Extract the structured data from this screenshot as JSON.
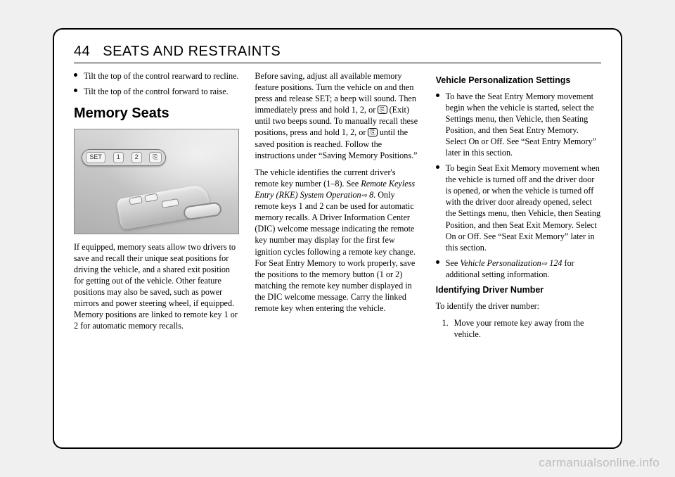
{
  "header": {
    "page_number": "44",
    "section": "SEATS AND RESTRAINTS"
  },
  "col1": {
    "bullets": [
      "Tilt the top of the control rearward to recline.",
      "Tilt the top of the control forward to raise."
    ],
    "heading": "Memory Seats",
    "figure": {
      "buttons": [
        "SET",
        "1",
        "2",
        "⎘"
      ]
    },
    "para1": "If equipped, memory seats allow two drivers to save and recall their unique seat positions for driving the vehicle, and a shared exit position for getting out of the vehicle. Other feature positions may also be saved, such as power mirrors and power steering wheel, if equipped. Memory positions are linked to remote key 1 or 2 for automatic memory recalls."
  },
  "col2": {
    "para1a": "Before saving, adjust all available memory feature positions. Turn the vehicle on and then press and release SET; a beep will sound. Then immediately press and hold 1, 2, or ",
    "exit_label": "(Exit)",
    "para1b": " until two beeps sound. To manually recall these positions, press and hold 1, 2, or ",
    "para1c": " until the saved position is reached. Follow the instructions under “Saving Memory Positions.”",
    "para2a": "The vehicle identifies the current driver's remote key number (1–8). See ",
    "ref_italic": "Remote Keyless Entry (RKE) System Operation",
    "ref_page": " 8",
    "para2b": ". Only remote keys 1 and 2 can be used for automatic memory recalls. A Driver Information Center (DIC) welcome message indicating the remote key number may display for the first few ignition cycles following a remote key change. For Seat Entry Memory to work properly, save the positions to the memory button (1 or 2) matching the remote key number displayed in the DIC welcome message. Carry the linked remote key when entering the vehicle."
  },
  "col3": {
    "subhead1": "Vehicle Personalization Settings",
    "bullets1": [
      "To have the Seat Entry Memory movement begin when the vehicle is started, select the Settings menu, then Vehicle, then Seating Position, and then Seat Entry Memory. Select On or Off. See “Seat Entry Memory” later in this section.",
      "To begin Seat Exit Memory movement when the vehicle is turned off and the driver door is opened, or when the vehicle is turned off with the driver door already opened, select the Settings menu, then Vehicle, then Seating Position, and then Seat Exit Memory. Select On or Off. See “Seat Exit Memory” later in this section."
    ],
    "bullet3_pre": "See ",
    "bullet3_italic": "Vehicle Personalization",
    "bullet3_page": " 124",
    "bullet3_post": " for additional setting information.",
    "subhead2": "Identifying Driver Number",
    "para_intro": "To identify the driver number:",
    "step1_num": "1.",
    "step1": "Move your remote key away from the vehicle."
  },
  "watermark": "carmanualsonline.info"
}
